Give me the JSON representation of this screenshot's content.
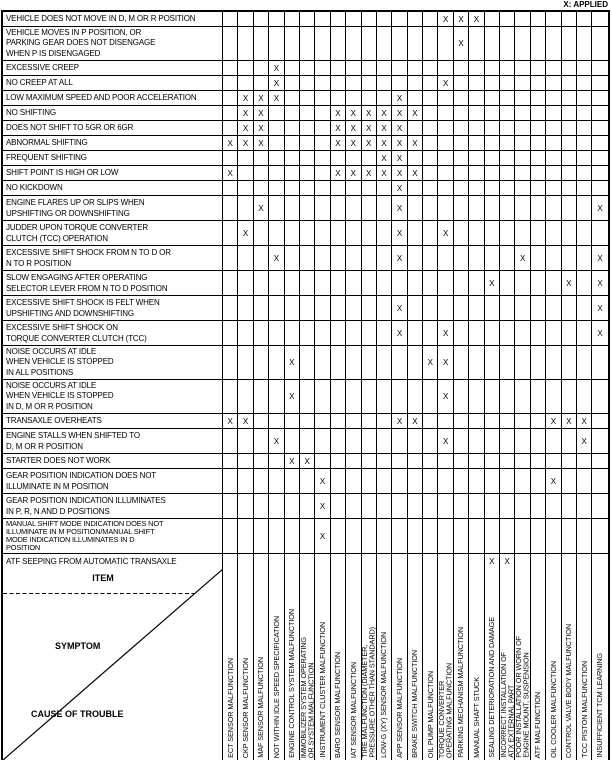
{
  "legend": "X: APPLIED",
  "corner": {
    "item": "ITEM",
    "symptom": "SYMPTOM",
    "cause": "CAUSE OF TROUBLE"
  },
  "mark_glyph": "X",
  "columns": [
    "ECT SENSOR MALFUNCTION",
    "CKP SENSOR MALFUNCTION",
    "MAF SENSOR MALFUNCTION",
    "NOT WITHIN IDLE SPEED SPECIFICATION",
    "ENGINE CONTROL SYSTEM MALFUNCTION",
    "IMMOBILIZER SYSTEM OPERATING\nOR SYSTEM MALFUNCTION",
    "INSTRUMENT CLUSTER MALFUNCTION",
    "BARO SENSOR MALFUNCTION",
    "IAT SENSOR MALFUNCTION",
    "TIRE MALFUNCTION (DIAMETER,\nPRESSURE OTHER THAN STANDARD)",
    "LOW-G (XY) SENSOR MALFUNCTION",
    "APP SENSOR MALFUNCTION",
    "BRAKE SWITCH MALFUNCTION",
    "OIL PUMP MALFUNCTION",
    "TORQUE CONVERTER\nOPERATING MALFUNCTION",
    "PARKING MECHANISM MALFUNCTION",
    "MANUAL SHAFT STUCK",
    "SEALING DETERIORATION AND DAMAGE",
    "INCORRECT INSTALLATION OF\nATX EXTERNAL PART",
    "POOR INSTALLATION OR WORN OF\nENGINE MOUNT, SUSPENSION",
    "ATF MALFUNCTION",
    "OIL COOLER MALFUNCTION",
    "CONTROL VALVE BODY MALFUNCTION",
    "TCC PISTON MALFUNCTION",
    "INSUFFICIENT TCM LEARNING"
  ],
  "rows": [
    {
      "label": "VEHICLE DOES NOT MOVE IN D, M OR R POSITION",
      "x": [
        15,
        16,
        17
      ]
    },
    {
      "label": "VEHICLE MOVES IN P POSITION, OR\nPARKING GEAR DOES NOT DISENGAGE\nWHEN P IS DISENGAGED",
      "x": [
        16
      ]
    },
    {
      "label": "EXCESSIVE CREEP",
      "x": [
        4
      ]
    },
    {
      "label": "NO CREEP AT ALL",
      "x": [
        4,
        15
      ]
    },
    {
      "label": "LOW MAXIMUM SPEED AND POOR ACCELERATION",
      "x": [
        2,
        3,
        4,
        12
      ]
    },
    {
      "label": "NO SHIFTING",
      "x": [
        2,
        3,
        8,
        9,
        10,
        11,
        12,
        13
      ]
    },
    {
      "label": "DOES NOT SHIFT TO 5GR OR 6GR",
      "x": [
        2,
        3,
        8,
        9,
        10,
        11,
        12
      ]
    },
    {
      "label": "ABNORMAL SHIFTING",
      "x": [
        1,
        2,
        3,
        8,
        9,
        10,
        11,
        12,
        13
      ]
    },
    {
      "label": "FREQUENT SHIFTING",
      "x": [
        11,
        12
      ]
    },
    {
      "label": "SHIFT POINT IS HIGH OR LOW",
      "x": [
        1,
        8,
        9,
        10,
        11,
        12,
        13
      ]
    },
    {
      "label": "NO KICKDOWN",
      "x": [
        12
      ]
    },
    {
      "label": "ENGINE FLARES UP OR SLIPS WHEN\nUPSHIFTING OR DOWNSHIFTING",
      "x": [
        3,
        12,
        25
      ]
    },
    {
      "label": "JUDDER UPON TORQUE CONVERTER\nCLUTCH (TCC) OPERATION",
      "x": [
        2,
        12,
        15
      ]
    },
    {
      "label": "EXCESSIVE SHIFT SHOCK FROM N TO D OR\nN TO R POSITION",
      "x": [
        4,
        12,
        20,
        25
      ]
    },
    {
      "label": "SLOW ENGAGING AFTER OPERATING\nSELECTOR LEVER FROM N TO D POSITION",
      "x": [
        18,
        23,
        25
      ]
    },
    {
      "label": "EXCESSIVE SHIFT SHOCK IS FELT WHEN\nUPSHIFTING AND DOWNSHIFTING",
      "x": [
        12,
        25
      ]
    },
    {
      "label": "EXCESSIVE SHIFT SHOCK ON\nTORQUE CONVERTER CLUTCH (TCC)",
      "x": [
        12,
        15,
        25
      ]
    },
    {
      "label": "NOISE OCCURS AT IDLE\nWHEN VEHICLE IS STOPPED\nIN ALL POSITIONS",
      "x": [
        5,
        14,
        15
      ]
    },
    {
      "label": "NOISE OCCURS AT IDLE\nWHEN VEHICLE IS STOPPED\nIN D, M OR R POSITION",
      "x": [
        5,
        15
      ]
    },
    {
      "label": "TRANSAXLE OVERHEATS",
      "x": [
        1,
        2,
        12,
        13,
        22,
        23,
        24
      ]
    },
    {
      "label": "ENGINE STALLS WHEN SHIFTED TO\nD, M OR R POSITION",
      "x": [
        4,
        15,
        24
      ]
    },
    {
      "label": "STARTER DOES NOT WORK",
      "x": [
        5,
        6
      ]
    },
    {
      "label": "GEAR POSITION INDICATION DOES NOT\nILLUMINATE IN M POSITION",
      "x": [
        7,
        22
      ]
    },
    {
      "label": "GEAR POSITION INDICATION ILLUMINATES\nIN P, R, N AND D POSITIONS",
      "x": [
        7
      ]
    },
    {
      "label": "MANUAL SHIFT MODE INDICATION DOES NOT\nILLUMINATE IN M POSITION/MANUAL SHIFT\nMODE INDICATION ILLUMINATES IN D\nPOSITION",
      "x": [
        7
      ]
    },
    {
      "label": "ATF SEEPING FROM AUTOMATIC TRANSAXLE",
      "x": [
        18,
        19
      ]
    }
  ]
}
